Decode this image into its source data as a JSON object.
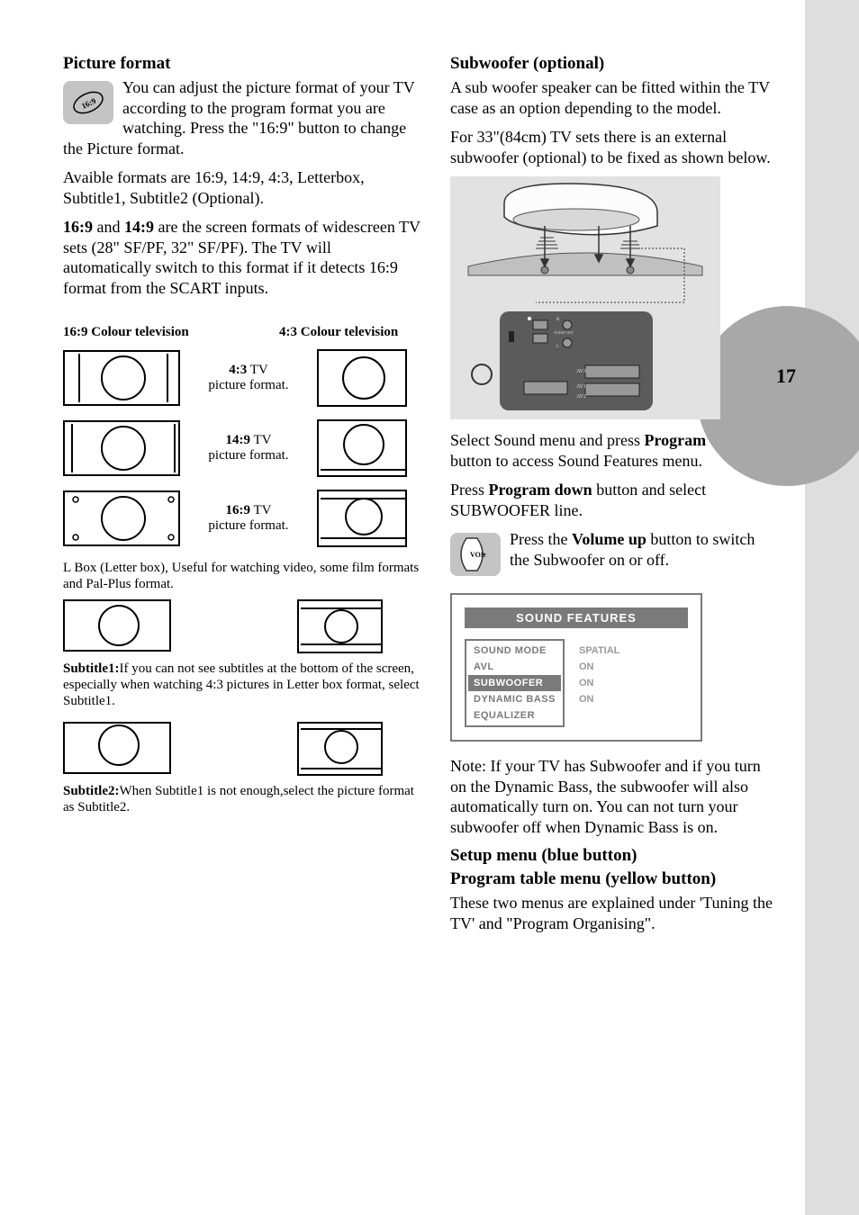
{
  "page_number": "17",
  "left": {
    "picture_format": {
      "title": "Picture format",
      "icon_label": "16:9",
      "intro": "You can adjust the picture format of your TV according to the program format you are watching. Press the \"16:9\" button to change the Picture format.",
      "avail": "Avaible formats are  16:9, 14:9, 4:3, Letterbox, Subtitle1, Subtitle2 (Optional).",
      "wide1_a": "16:9",
      "wide1_b": " and ",
      "wide1_c": "14:9",
      "wide1_d": " are the screen formats of widescreen TV sets (28\" SF/PF, 32\" SF/PF). The TV will automatically switch to this format if it detects 16:9 format from the SCART inputs."
    },
    "headers": {
      "h169": "16:9 Colour television",
      "h43": "4:3 Colour television"
    },
    "rows": [
      {
        "ratio": "4:3",
        "suffix": " TV",
        "line2": "picture format."
      },
      {
        "ratio": "14:9",
        "suffix": " TV",
        "line2": "picture format."
      },
      {
        "ratio": "16:9",
        "suffix": "  TV",
        "line2": "picture format."
      }
    ],
    "lbox": "L Box (Letter box), Useful for watching video, some film formats and Pal-Plus  format.",
    "sub1_label": "Subtitle1:",
    "sub1_text": "If you can not see subtitles  at the bottom of the screen, especially when watching 4:3 pictures in Letter box format, select Subtitle1.",
    "sub2_label": "Subtitle2:",
    "sub2_text": "When Subtitle1 is not enough,select the picture format as Subtitle2."
  },
  "right": {
    "subwoofer": {
      "title": "Subwoofer (optional)",
      "p1": "A sub woofer speaker can be fitted within the TV case as an option depending to the model.",
      "p2": "For 33\"(84cm) TV sets there is an external subwoofer (optional) to be fixed as shown below."
    },
    "diagram_labels": {
      "av1": "AV1",
      "av2": "AV2",
      "av3": "AV3",
      "audio_out": "AUDIO OUT",
      "r": "R",
      "l": "L"
    },
    "steps": {
      "s1a": "Select Sound menu and press ",
      "s1b": "Program down",
      "s1c": " button to access Sound Features menu.",
      "s2a": "Press ",
      "s2b": "Program down",
      "s2c": " button and select  SUBWOOFER line."
    },
    "vol": {
      "icon_label": "VOL",
      "a": "Press the ",
      "b": "Volume up",
      "c": "  button to switch the Subwoofer  on or off."
    },
    "menu": {
      "title": "SOUND FEATURES",
      "items": [
        "SOUND MODE",
        "AVL",
        "SUBWOOFER",
        "DYNAMIC BASS",
        "EQUALIZER"
      ],
      "values": [
        "SPATIAL",
        "ON",
        "ON",
        "ON",
        ""
      ],
      "selected_index": 2
    },
    "note": "Note: If your TV has Subwoofer and if you turn on the Dynamic Bass, the subwoofer will also automatically turn on. You can not turn your subwoofer off when Dynamic Bass is on.",
    "setup": "Setup menu (blue button)",
    "program_table": "Program table menu (yellow button)",
    "explain": "These two menus are explained under 'Tuning the TV' and \"Program Organising\"."
  },
  "colors": {
    "band": "#dedede",
    "circle": "#a8a8a8",
    "icon_bg": "#c4c4c4",
    "diagram_bg": "#e2e2e2",
    "menu_border": "#7a7a7a",
    "menu_gray_text": "#9a9a9a"
  }
}
